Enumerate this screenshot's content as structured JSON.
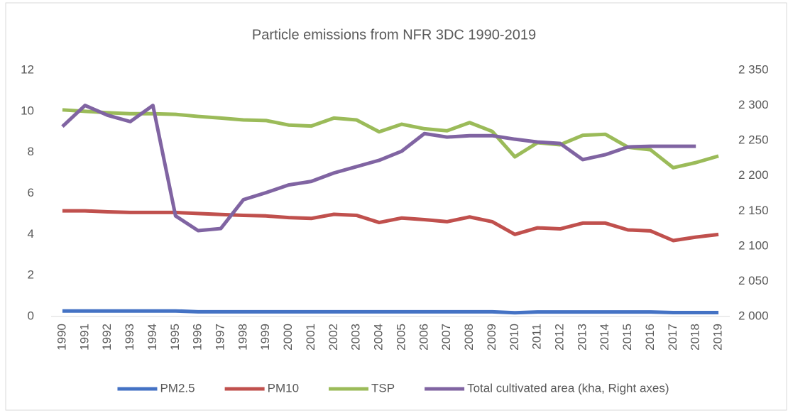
{
  "chart_data": {
    "type": "line",
    "title": "Particle emissions from NFR 3DC 1990-2019",
    "categories": [
      "1990",
      "1991",
      "1992",
      "1993",
      "1994",
      "1995",
      "1996",
      "1997",
      "1998",
      "1999",
      "2000",
      "2001",
      "2002",
      "2003",
      "2004",
      "2005",
      "2006",
      "2007",
      "2008",
      "2009",
      "2010",
      "2011",
      "2012",
      "2013",
      "2014",
      "2015",
      "2016",
      "2017",
      "2018",
      "2019"
    ],
    "series": [
      {
        "name": "PM2.5",
        "color": "#4472c4",
        "values": [
          0.27,
          0.27,
          0.27,
          0.27,
          0.27,
          0.27,
          0.23,
          0.23,
          0.23,
          0.23,
          0.23,
          0.23,
          0.23,
          0.23,
          0.23,
          0.23,
          0.23,
          0.23,
          0.23,
          0.23,
          0.18,
          0.22,
          0.22,
          0.22,
          0.22,
          0.22,
          0.22,
          0.19,
          0.19,
          0.19
        ]
      },
      {
        "name": "PM10",
        "color": "#c0504d",
        "values": [
          5.15,
          5.15,
          5.1,
          5.07,
          5.07,
          5.07,
          5.02,
          4.97,
          4.93,
          4.9,
          4.82,
          4.78,
          4.98,
          4.93,
          4.58,
          4.8,
          4.72,
          4.62,
          4.85,
          4.62,
          4.0,
          4.32,
          4.27,
          4.55,
          4.55,
          4.22,
          4.17,
          3.7,
          3.87,
          4.0
        ]
      },
      {
        "name": "TSP",
        "color": "#9bbb59",
        "values": [
          10.07,
          10.0,
          9.93,
          9.88,
          9.88,
          9.85,
          9.75,
          9.67,
          9.58,
          9.55,
          9.33,
          9.28,
          9.67,
          9.58,
          9.0,
          9.37,
          9.15,
          9.05,
          9.45,
          9.02,
          7.78,
          8.47,
          8.37,
          8.83,
          8.88,
          8.25,
          8.12,
          7.25,
          7.5,
          7.82
        ]
      },
      {
        "name": "Total cultivated area (kha, Right axes)",
        "color": "#8064a2",
        "axis": "y2",
        "values": [
          2270,
          2300,
          2286,
          2277,
          2300,
          2143,
          2122,
          2125,
          2166,
          2176,
          2187,
          2192,
          2204,
          2213,
          2222,
          2235,
          2260,
          2255,
          2257,
          2257,
          2252,
          2248,
          2246,
          2223,
          2230,
          2241,
          2242,
          2242,
          2242,
          null
        ]
      }
    ],
    "ylim": [
      0,
      12
    ],
    "yticks": [
      0,
      2,
      4,
      6,
      8,
      10,
      12
    ],
    "y2lim": [
      2000,
      2350
    ],
    "y2ticks": [
      {
        "value": 2000,
        "label": "2 000"
      },
      {
        "value": 2050,
        "label": "2 050"
      },
      {
        "value": 2100,
        "label": "2 100"
      },
      {
        "value": 2150,
        "label": "2 150"
      },
      {
        "value": 2200,
        "label": "2 200"
      },
      {
        "value": 2250,
        "label": "2 250"
      },
      {
        "value": 2300,
        "label": "2 300"
      },
      {
        "value": 2350,
        "label": "2 350"
      }
    ],
    "legend": "bottom"
  }
}
